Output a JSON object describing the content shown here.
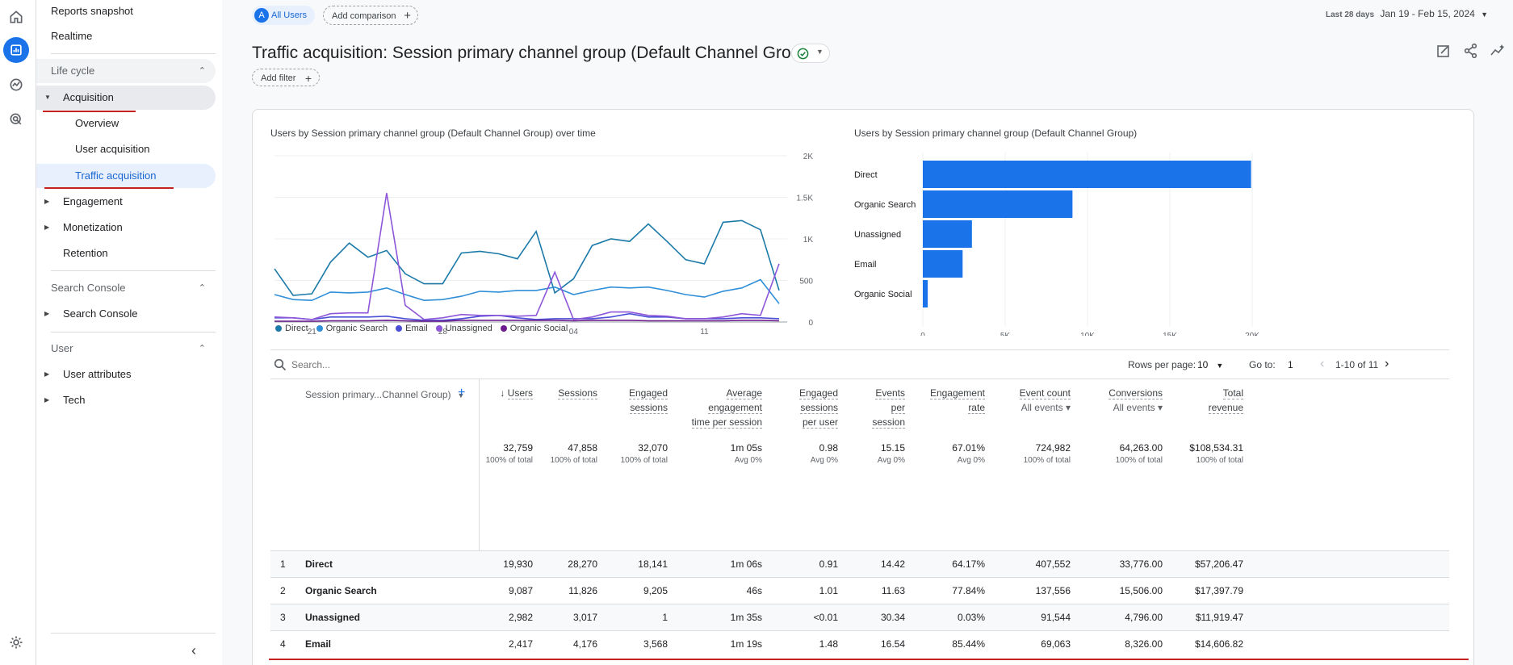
{
  "nav": {
    "top_items": [
      "Reports snapshot",
      "Realtime"
    ],
    "lifecycle": {
      "label": "Life cycle",
      "acquisition": "Acquisition",
      "acquisition_children": [
        "Overview",
        "User acquisition",
        "Traffic acquisition"
      ],
      "others": [
        "Engagement",
        "Monetization",
        "Retention"
      ]
    },
    "search_console": {
      "label": "Search Console",
      "item": "Search Console"
    },
    "user": {
      "label": "User",
      "items": [
        "User attributes",
        "Tech"
      ]
    }
  },
  "header": {
    "segment_avatar": "A",
    "segment_label": "All Users",
    "add_comparison": "Add comparison",
    "date_prefix": "Last 28 days",
    "date_range": "Jan 19 - Feb 15, 2024"
  },
  "page": {
    "title": "Traffic acquisition: Session primary channel group (Default Channel Group)",
    "add_filter": "Add filter"
  },
  "chart_data": [
    {
      "type": "line",
      "title": "Users by Session primary channel group (Default Channel Group) over time",
      "x": [
        "Jan 19",
        "Jan 20",
        "Jan 21",
        "Jan 22",
        "Jan 23",
        "Jan 24",
        "Jan 25",
        "Jan 26",
        "Jan 27",
        "Jan 28",
        "Jan 29",
        "Jan 30",
        "Jan 31",
        "Feb 1",
        "Feb 2",
        "Feb 3",
        "Feb 4",
        "Feb 5",
        "Feb 6",
        "Feb 7",
        "Feb 8",
        "Feb 9",
        "Feb 10",
        "Feb 11",
        "Feb 12",
        "Feb 13",
        "Feb 14",
        "Feb 15"
      ],
      "x_tick_labels": [
        {
          "day": "21",
          "month": "Jan"
        },
        {
          "day": "28",
          "month": ""
        },
        {
          "day": "04",
          "month": "Feb"
        },
        {
          "day": "11",
          "month": ""
        }
      ],
      "x_tick_dates": [
        "Jan 21",
        "Jan 28",
        "Feb 4",
        "Feb 11"
      ],
      "y_ticks": [
        "0",
        "500",
        "1K",
        "1.5K",
        "2K"
      ],
      "ylim": [
        0,
        2000
      ],
      "y_axis": "right",
      "series": [
        {
          "name": "Direct",
          "color": "#1c7aa8",
          "values": [
            640,
            320,
            340,
            720,
            950,
            780,
            860,
            580,
            460,
            460,
            830,
            850,
            820,
            760,
            1090,
            350,
            520,
            920,
            1000,
            970,
            1180,
            970,
            750,
            700,
            1200,
            1220,
            1110,
            380
          ]
        },
        {
          "name": "Organic Search",
          "color": "#2f8fd8",
          "values": [
            330,
            270,
            260,
            360,
            350,
            360,
            410,
            330,
            260,
            270,
            310,
            370,
            360,
            380,
            380,
            420,
            330,
            380,
            420,
            410,
            420,
            380,
            330,
            300,
            370,
            410,
            510,
            220
          ]
        },
        {
          "name": "Email",
          "color": "#4b4fd6",
          "values": [
            50,
            50,
            30,
            60,
            60,
            60,
            70,
            40,
            20,
            20,
            40,
            70,
            80,
            50,
            30,
            40,
            40,
            40,
            60,
            100,
            60,
            60,
            40,
            40,
            40,
            50,
            50,
            40
          ]
        },
        {
          "name": "Unassigned",
          "color": "#8e57d9",
          "values": [
            60,
            50,
            30,
            100,
            110,
            110,
            1550,
            200,
            30,
            50,
            90,
            80,
            80,
            70,
            80,
            600,
            30,
            60,
            120,
            120,
            80,
            70,
            40,
            40,
            60,
            100,
            80,
            700
          ]
        },
        {
          "name": "Organic Social",
          "color": "#6d1c8f",
          "values": [
            10,
            10,
            10,
            15,
            15,
            15,
            20,
            15,
            10,
            10,
            20,
            20,
            20,
            20,
            20,
            20,
            15,
            20,
            20,
            20,
            15,
            15,
            15,
            15,
            15,
            20,
            20,
            15
          ]
        }
      ]
    },
    {
      "type": "bar",
      "orientation": "horizontal",
      "title": "Users by Session primary channel group (Default Channel Group)",
      "categories": [
        "Direct",
        "Organic Search",
        "Unassigned",
        "Email",
        "Organic Social"
      ],
      "values": [
        19930,
        9087,
        2982,
        2417,
        300
      ],
      "x_ticks": [
        "0",
        "5K",
        "10K",
        "15K",
        "20K"
      ],
      "xlim": [
        0,
        20000
      ],
      "color": "#1a73e8"
    }
  ],
  "table": {
    "search_placeholder": "Search...",
    "rows_per_page_label": "Rows per page:",
    "rows_per_page": "10",
    "goto_label": "Go to:",
    "goto_value": "1",
    "pagination": "1-10 of 11",
    "dimension_header": "Session primary...Channel Group)",
    "columns": [
      {
        "key": "users",
        "label": [
          "Users"
        ],
        "sorted": true,
        "total": "32,759",
        "sub": "100% of total"
      },
      {
        "key": "sessions",
        "label": [
          "Sessions"
        ],
        "total": "47,858",
        "sub": "100% of total"
      },
      {
        "key": "engaged",
        "label": [
          "Engaged",
          "sessions"
        ],
        "total": "32,070",
        "sub": "100% of total"
      },
      {
        "key": "avg_time",
        "label": [
          "Average",
          "engagement",
          "time per session"
        ],
        "total": "1m 05s",
        "sub": "Avg 0%"
      },
      {
        "key": "eng_per_user",
        "label": [
          "Engaged",
          "sessions",
          "per user"
        ],
        "total": "0.98",
        "sub": "Avg 0%"
      },
      {
        "key": "events_per_session",
        "label": [
          "Events",
          "per",
          "session"
        ],
        "total": "15.15",
        "sub": "Avg 0%"
      },
      {
        "key": "eng_rate",
        "label": [
          "Engagement",
          "rate"
        ],
        "total": "67.01%",
        "sub": "Avg 0%"
      },
      {
        "key": "event_count",
        "label": [
          "Event count"
        ],
        "selector": "All events",
        "total": "724,982",
        "sub": "100% of total"
      },
      {
        "key": "conversions",
        "label": [
          "Conversions"
        ],
        "selector": "All events",
        "total": "64,263.00",
        "sub": "100% of total"
      },
      {
        "key": "revenue",
        "label": [
          "Total",
          "revenue"
        ],
        "total": "$108,534.31",
        "sub": "100% of total"
      }
    ],
    "rows": [
      {
        "n": "1",
        "name": "Direct",
        "vals": [
          "19,930",
          "28,270",
          "18,141",
          "1m 06s",
          "0.91",
          "14.42",
          "64.17%",
          "407,552",
          "33,776.00",
          "$57,206.47"
        ]
      },
      {
        "n": "2",
        "name": "Organic Search",
        "vals": [
          "9,087",
          "11,826",
          "9,205",
          "46s",
          "1.01",
          "11.63",
          "77.84%",
          "137,556",
          "15,506.00",
          "$17,397.79"
        ]
      },
      {
        "n": "3",
        "name": "Unassigned",
        "vals": [
          "2,982",
          "3,017",
          "1",
          "1m 35s",
          "<0.01",
          "30.34",
          "0.03%",
          "91,544",
          "4,796.00",
          "$11,919.47"
        ]
      },
      {
        "n": "4",
        "name": "Email",
        "vals": [
          "2,417",
          "4,176",
          "3,568",
          "1m 19s",
          "1.48",
          "16.54",
          "85.44%",
          "69,063",
          "8,326.00",
          "$14,606.82"
        ]
      }
    ]
  }
}
